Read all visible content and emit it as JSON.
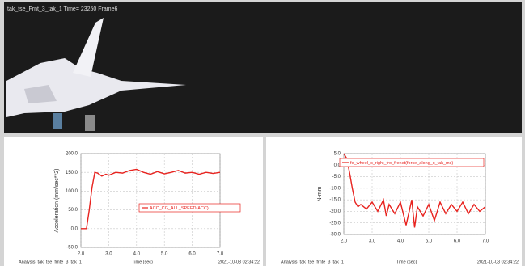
{
  "viewport": {
    "caption": "tak_tse_Frnt_3_tak_1   Time= 23250 Frame6"
  },
  "plots": [
    {
      "ylabel": "Acceleration (mm/sec**2)",
      "xlabel": "Time (sec)",
      "analysis": "Analysis:  tak_tse_frnte_3_tak_1",
      "timestamp": "2021-10-03 02:34:22",
      "legend": "ACC_CG_ALL_SPEED(ACC)",
      "color": "#e8231f",
      "grid": true,
      "xlim": [
        2,
        7
      ],
      "ylim": [
        -50,
        200
      ],
      "xticks": [
        {
          "value": 2,
          "label": "2.0"
        },
        {
          "value": 3,
          "label": "3.0"
        },
        {
          "value": 4,
          "label": "4.0"
        },
        {
          "value": 5,
          "label": "5.0"
        },
        {
          "value": 6,
          "label": "6.0"
        },
        {
          "value": 7,
          "label": "7.0"
        }
      ],
      "yticks": [
        {
          "value": 200,
          "label": "200.0"
        },
        {
          "value": 150,
          "label": "150.0"
        },
        {
          "value": 100,
          "label": "100.0"
        },
        {
          "value": 50,
          "label": "50.0"
        },
        {
          "value": 0,
          "label": "0.0"
        },
        {
          "value": -50,
          "label": "-50.0"
        }
      ],
      "x": [
        2.0,
        2.2,
        2.3,
        2.4,
        2.5,
        2.6,
        2.75,
        2.9,
        3.0,
        3.25,
        3.5,
        3.75,
        4.0,
        4.25,
        4.5,
        4.75,
        5.0,
        5.25,
        5.5,
        5.75,
        6.0,
        6.25,
        6.5,
        6.75,
        7.0
      ],
      "values": [
        0,
        0,
        50,
        110,
        150,
        148,
        140,
        145,
        142,
        150,
        148,
        155,
        158,
        150,
        145,
        152,
        146,
        150,
        155,
        148,
        150,
        145,
        150,
        147,
        150
      ]
    },
    {
      "ylabel": "N-mm",
      "xlabel": "Time (sec)",
      "analysis": "Analysis:  tak_tse_frnte_3_tak_1",
      "timestamp": "2021-10-03 02:34:22",
      "legend": "fe_wheel_c_right_fro_frenet(force_along_x_tak_ms)",
      "color": "#e8231f",
      "grid": true,
      "xlim": [
        2,
        7
      ],
      "ylim": [
        -30,
        5
      ],
      "xticks": [
        {
          "value": 2,
          "label": "2.0"
        },
        {
          "value": 3,
          "label": "3.0"
        },
        {
          "value": 4,
          "label": "4.0"
        },
        {
          "value": 5,
          "label": "5.0"
        },
        {
          "value": 6,
          "label": "6.0"
        },
        {
          "value": 7,
          "label": "7.0"
        }
      ],
      "yticks": [
        {
          "value": 5,
          "label": "5.0"
        },
        {
          "value": 0,
          "label": "0.0"
        },
        {
          "value": -5,
          "label": "-5.0"
        },
        {
          "value": -10,
          "label": "-10.0"
        },
        {
          "value": -15,
          "label": "-15.0"
        },
        {
          "value": -20,
          "label": "-20.0"
        },
        {
          "value": -25,
          "label": "-25.0"
        },
        {
          "value": -30,
          "label": "-30.0"
        }
      ],
      "x": [
        2.0,
        2.1,
        2.2,
        2.3,
        2.4,
        2.5,
        2.6,
        2.8,
        3.0,
        3.2,
        3.4,
        3.5,
        3.6,
        3.8,
        4.0,
        4.2,
        4.4,
        4.5,
        4.6,
        4.8,
        5.0,
        5.2,
        5.4,
        5.6,
        5.8,
        6.0,
        6.2,
        6.4,
        6.6,
        6.8,
        7.0
      ],
      "values": [
        5,
        3,
        -3,
        -10,
        -16,
        -18,
        -17,
        -19,
        -16,
        -20,
        -15,
        -22,
        -17,
        -21,
        -16,
        -26,
        -15,
        -27,
        -18,
        -22,
        -17,
        -24,
        -16,
        -21,
        -17,
        -20,
        -16,
        -21,
        -17,
        -20,
        -18
      ]
    }
  ]
}
